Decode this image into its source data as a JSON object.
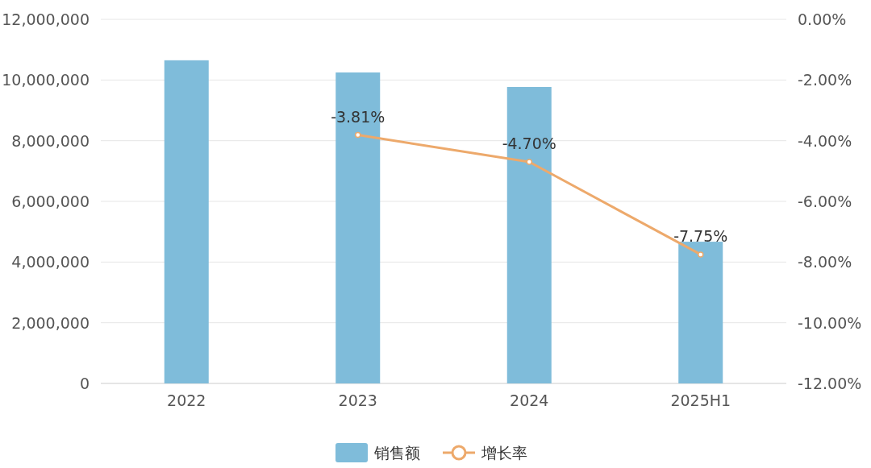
{
  "chart_data": {
    "type": "bar",
    "categories": [
      "2022",
      "2023",
      "2024",
      "2025H1"
    ],
    "series": [
      {
        "name": "销售额",
        "color": "#7fbcda",
        "values": [
          10650000,
          10250000,
          9770000,
          4670000
        ]
      },
      {
        "name": "增长率",
        "type": "line",
        "axis": "y2",
        "color": "#eda96b",
        "values": [
          null,
          -3.81,
          -4.7,
          -7.75
        ],
        "value_labels": [
          null,
          "-3.81%",
          "-4.70%",
          "-7.75%"
        ]
      }
    ],
    "ylim": [
      0,
      12000000
    ],
    "yticks": [
      {
        "value": 0,
        "label": "0"
      },
      {
        "value": 2000000,
        "label": "2,000,000"
      },
      {
        "value": 4000000,
        "label": "4,000,000"
      },
      {
        "value": 6000000,
        "label": "6,000,000"
      },
      {
        "value": 8000000,
        "label": "8,000,000"
      },
      {
        "value": 10000000,
        "label": "10,000,000"
      },
      {
        "value": 12000000,
        "label": "12,000,000"
      }
    ],
    "y2lim": [
      -12,
      0
    ],
    "y2ticks": [
      {
        "value": 0,
        "label": "0.00%"
      },
      {
        "value": -2,
        "label": "-2.00%"
      },
      {
        "value": -4,
        "label": "-4.00%"
      },
      {
        "value": -6,
        "label": "-6.00%"
      },
      {
        "value": -8,
        "label": "-8.00%"
      },
      {
        "value": -10,
        "label": "-10.00%"
      },
      {
        "value": -12,
        "label": "-12.00%"
      }
    ],
    "grid": "y",
    "legend": "bottom",
    "marker": "circle"
  }
}
